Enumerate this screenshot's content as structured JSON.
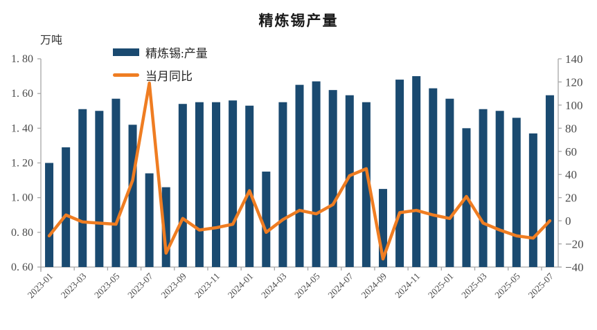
{
  "title": "精炼锡产量",
  "unit_label": "万吨",
  "legend": [
    {
      "label": "精炼锡:产量",
      "type": "bar-swatch"
    },
    {
      "label": "当月同比",
      "type": "line-swatch"
    }
  ],
  "colors": {
    "bar": "#1A4A70",
    "line": "#EF7D22",
    "axis": "#A6A6A6",
    "tick_text": "#4A4A4A"
  },
  "chart_data": {
    "type": "bar+line",
    "title": "精炼锡产量",
    "categories": [
      "2023-01",
      "2023-02",
      "2023-03",
      "2023-04",
      "2023-05",
      "2023-06",
      "2023-07",
      "2023-08",
      "2023-09",
      "2023-10",
      "2023-11",
      "2023-12",
      "2024-01",
      "2024-02",
      "2024-03",
      "2024-04",
      "2024-05",
      "2024-06",
      "2024-07",
      "2024-08",
      "2024-09",
      "2024-10",
      "2024-11",
      "2024-12",
      "2025-01",
      "2025-02",
      "2025-03",
      "2025-04",
      "2025-05",
      "2025-06",
      "2025-07"
    ],
    "series": [
      {
        "name": "精炼锡:产量",
        "type": "bar",
        "axis": "left",
        "unit": "万吨",
        "values": [
          1.2,
          1.29,
          1.51,
          1.5,
          1.57,
          1.42,
          1.14,
          1.06,
          1.54,
          1.55,
          1.55,
          1.56,
          1.53,
          1.15,
          1.55,
          1.65,
          1.67,
          1.62,
          1.59,
          1.55,
          1.05,
          1.68,
          1.7,
          1.63,
          1.57,
          1.4,
          1.51,
          1.5,
          1.46,
          1.37,
          1.59
        ]
      },
      {
        "name": "当月同比",
        "type": "line",
        "axis": "right",
        "unit": "%",
        "values": [
          -13,
          5,
          -1,
          -2,
          -3,
          35,
          119,
          -28,
          2,
          -8,
          -6,
          -3,
          26,
          -10,
          1,
          9,
          6,
          14,
          39,
          45,
          -33,
          7,
          9,
          5,
          2,
          21,
          -2,
          -8,
          -13,
          -15,
          0
        ]
      }
    ],
    "left_axis": {
      "min": 0.6,
      "max": 1.8,
      "step": 0.2,
      "tick_labels": [
        "1. 80",
        "1. 60",
        "1. 40",
        "1. 20",
        "1. 00",
        "0. 80",
        "0. 60"
      ]
    },
    "right_axis": {
      "min": -40,
      "max": 140,
      "step": 20,
      "tick_labels": [
        "140",
        "120",
        "100",
        "80",
        "60",
        "40",
        "20",
        "0",
        "−20",
        "−40"
      ]
    },
    "x_tick_labels": [
      "2023-01",
      "2023-03",
      "2023-05",
      "2023-07",
      "2023-09",
      "2023-11",
      "2024-01",
      "2024-03",
      "2024-05",
      "2024-07",
      "2024-09",
      "2024-11",
      "2025-01",
      "2025-03",
      "2025-05",
      "2025-07"
    ],
    "x_label_every": 2,
    "grid": false,
    "legend_position": "top-inside-left"
  }
}
